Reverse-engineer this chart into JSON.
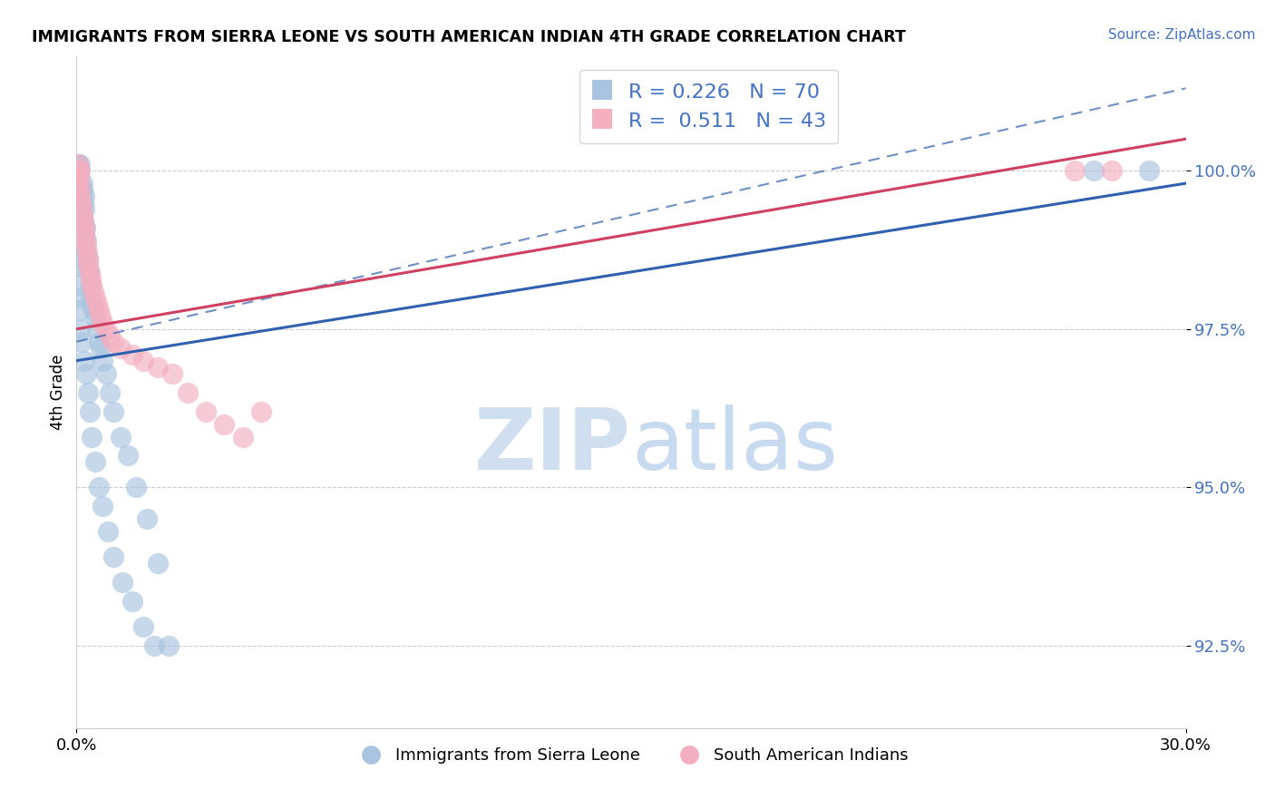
{
  "title": "IMMIGRANTS FROM SIERRA LEONE VS SOUTH AMERICAN INDIAN 4TH GRADE CORRELATION CHART",
  "source": "Source: ZipAtlas.com",
  "ylabel": "4th Grade",
  "ytick_values": [
    92.5,
    95.0,
    97.5,
    100.0
  ],
  "ylim": [
    91.2,
    101.8
  ],
  "xlim": [
    0.0,
    30.0
  ],
  "legend1_r": "0.226",
  "legend1_n": "70",
  "legend2_r": "0.511",
  "legend2_n": "43",
  "color_blue": "#a8c4e0",
  "color_pink": "#f4afc0",
  "line_blue": "#3060b0",
  "line_pink": "#d04060",
  "watermark_color": "#d0dff0",
  "blue_line_x0": 0.0,
  "blue_line_y0": 97.0,
  "blue_line_x1": 30.0,
  "blue_line_y1": 99.8,
  "pink_line_x0": 0.0,
  "pink_line_y0": 97.5,
  "pink_line_x1": 30.0,
  "pink_line_y1": 100.5,
  "blue_scatter_x": [
    0.02,
    0.03,
    0.04,
    0.05,
    0.06,
    0.07,
    0.08,
    0.09,
    0.1,
    0.11,
    0.12,
    0.13,
    0.14,
    0.15,
    0.16,
    0.17,
    0.18,
    0.19,
    0.2,
    0.21,
    0.22,
    0.23,
    0.25,
    0.27,
    0.29,
    0.31,
    0.33,
    0.36,
    0.39,
    0.42,
    0.45,
    0.5,
    0.55,
    0.6,
    0.65,
    0.7,
    0.8,
    0.9,
    1.0,
    1.2,
    1.4,
    1.6,
    1.9,
    2.2,
    0.03,
    0.04,
    0.05,
    0.06,
    0.07,
    0.08,
    0.1,
    0.12,
    0.15,
    0.2,
    0.25,
    0.3,
    0.35,
    0.4,
    0.5,
    0.6,
    0.7,
    0.85,
    1.0,
    1.25,
    1.5,
    1.8,
    2.1,
    2.5,
    27.5,
    29.0
  ],
  "blue_scatter_y": [
    99.8,
    99.9,
    100.0,
    100.1,
    100.0,
    99.9,
    99.8,
    100.0,
    100.1,
    99.7,
    99.5,
    99.6,
    99.4,
    99.3,
    99.7,
    99.8,
    99.5,
    99.2,
    99.6,
    99.4,
    99.0,
    99.1,
    98.9,
    98.7,
    98.5,
    98.6,
    98.4,
    98.2,
    98.0,
    97.9,
    97.8,
    97.7,
    97.5,
    97.3,
    97.2,
    97.0,
    96.8,
    96.5,
    96.2,
    95.8,
    95.5,
    95.0,
    94.5,
    93.8,
    99.3,
    99.0,
    98.8,
    98.5,
    98.2,
    98.0,
    97.8,
    97.5,
    97.3,
    97.0,
    96.8,
    96.5,
    96.2,
    95.8,
    95.4,
    95.0,
    94.7,
    94.3,
    93.9,
    93.5,
    93.2,
    92.8,
    92.5,
    92.5,
    100.0,
    100.0
  ],
  "pink_scatter_x": [
    0.03,
    0.04,
    0.05,
    0.06,
    0.07,
    0.08,
    0.09,
    0.1,
    0.12,
    0.14,
    0.16,
    0.18,
    0.2,
    0.22,
    0.24,
    0.26,
    0.28,
    0.3,
    0.32,
    0.35,
    0.38,
    0.42,
    0.46,
    0.5,
    0.55,
    0.6,
    0.65,
    0.7,
    0.8,
    0.9,
    1.0,
    1.2,
    1.5,
    1.8,
    2.2,
    2.6,
    3.0,
    3.5,
    4.0,
    4.5,
    27.0,
    28.0,
    5.0
  ],
  "pink_scatter_y": [
    99.9,
    100.0,
    100.1,
    99.8,
    99.9,
    100.0,
    99.7,
    99.6,
    99.5,
    99.4,
    99.3,
    99.2,
    99.1,
    99.0,
    98.9,
    98.8,
    98.7,
    98.6,
    98.5,
    98.4,
    98.3,
    98.2,
    98.1,
    98.0,
    97.9,
    97.8,
    97.7,
    97.6,
    97.5,
    97.4,
    97.3,
    97.2,
    97.1,
    97.0,
    96.9,
    96.8,
    96.5,
    96.2,
    96.0,
    95.8,
    100.0,
    100.0,
    96.2
  ]
}
